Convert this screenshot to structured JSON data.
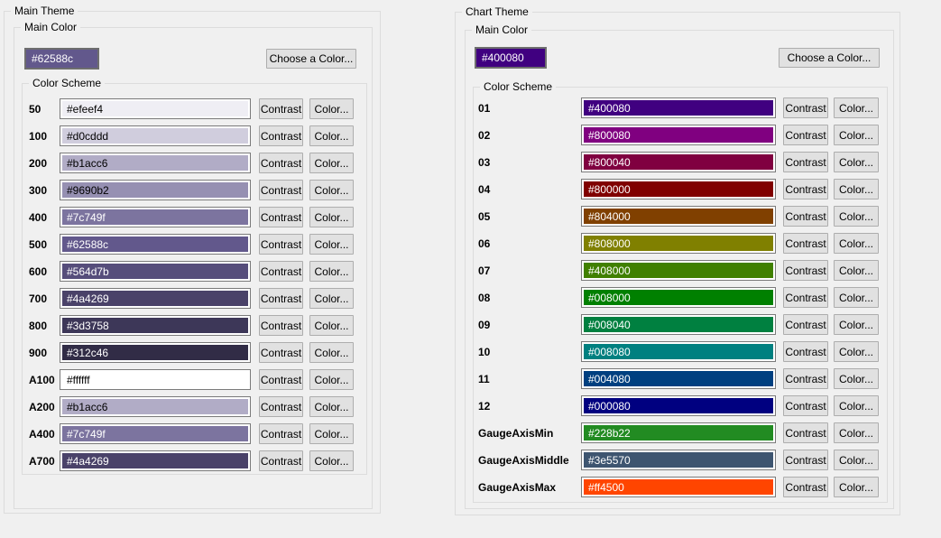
{
  "colors": {
    "background": "#f0f0f0",
    "groupbox_border": "#dcdcdc",
    "button_face": "#e1e1e1",
    "button_border": "#adadad",
    "field_border": "#7a7a7a"
  },
  "panels": [
    {
      "title": "Main Theme",
      "main_color": {
        "title": "Main Color",
        "value": "#62588c",
        "choose_button": "Choose a Color..."
      },
      "color_scheme": {
        "title": "Color Scheme",
        "contrast_button": "Contrast",
        "color_button": "Color...",
        "rows": [
          {
            "label": "50",
            "value": "#efeef4"
          },
          {
            "label": "100",
            "value": "#d0cddd"
          },
          {
            "label": "200",
            "value": "#b1acc6"
          },
          {
            "label": "300",
            "value": "#9690b2"
          },
          {
            "label": "400",
            "value": "#7c749f"
          },
          {
            "label": "500",
            "value": "#62588c"
          },
          {
            "label": "600",
            "value": "#564d7b"
          },
          {
            "label": "700",
            "value": "#4a4269"
          },
          {
            "label": "800",
            "value": "#3d3758"
          },
          {
            "label": "900",
            "value": "#312c46"
          },
          {
            "label": "A100",
            "value": "#ffffff"
          },
          {
            "label": "A200",
            "value": "#b1acc6"
          },
          {
            "label": "A400",
            "value": "#7c749f"
          },
          {
            "label": "A700",
            "value": "#4a4269"
          }
        ]
      }
    },
    {
      "title": "Chart Theme",
      "main_color": {
        "title": "Main Color",
        "value": "#400080",
        "choose_button": "Choose a Color..."
      },
      "color_scheme": {
        "title": "Color Scheme",
        "contrast_button": "Contrast",
        "color_button": "Color...",
        "rows": [
          {
            "label": "01",
            "value": "#400080"
          },
          {
            "label": "02",
            "value": "#800080"
          },
          {
            "label": "03",
            "value": "#800040"
          },
          {
            "label": "04",
            "value": "#800000"
          },
          {
            "label": "05",
            "value": "#804000"
          },
          {
            "label": "06",
            "value": "#808000"
          },
          {
            "label": "07",
            "value": "#408000"
          },
          {
            "label": "08",
            "value": "#008000"
          },
          {
            "label": "09",
            "value": "#008040"
          },
          {
            "label": "10",
            "value": "#008080"
          },
          {
            "label": "11",
            "value": "#004080"
          },
          {
            "label": "12",
            "value": "#000080"
          },
          {
            "label": "GaugeAxisMin",
            "value": "#228b22"
          },
          {
            "label": "GaugeAxisMiddle",
            "value": "#3e5570"
          },
          {
            "label": "GaugeAxisMax",
            "value": "#ff4500"
          }
        ]
      }
    }
  ]
}
